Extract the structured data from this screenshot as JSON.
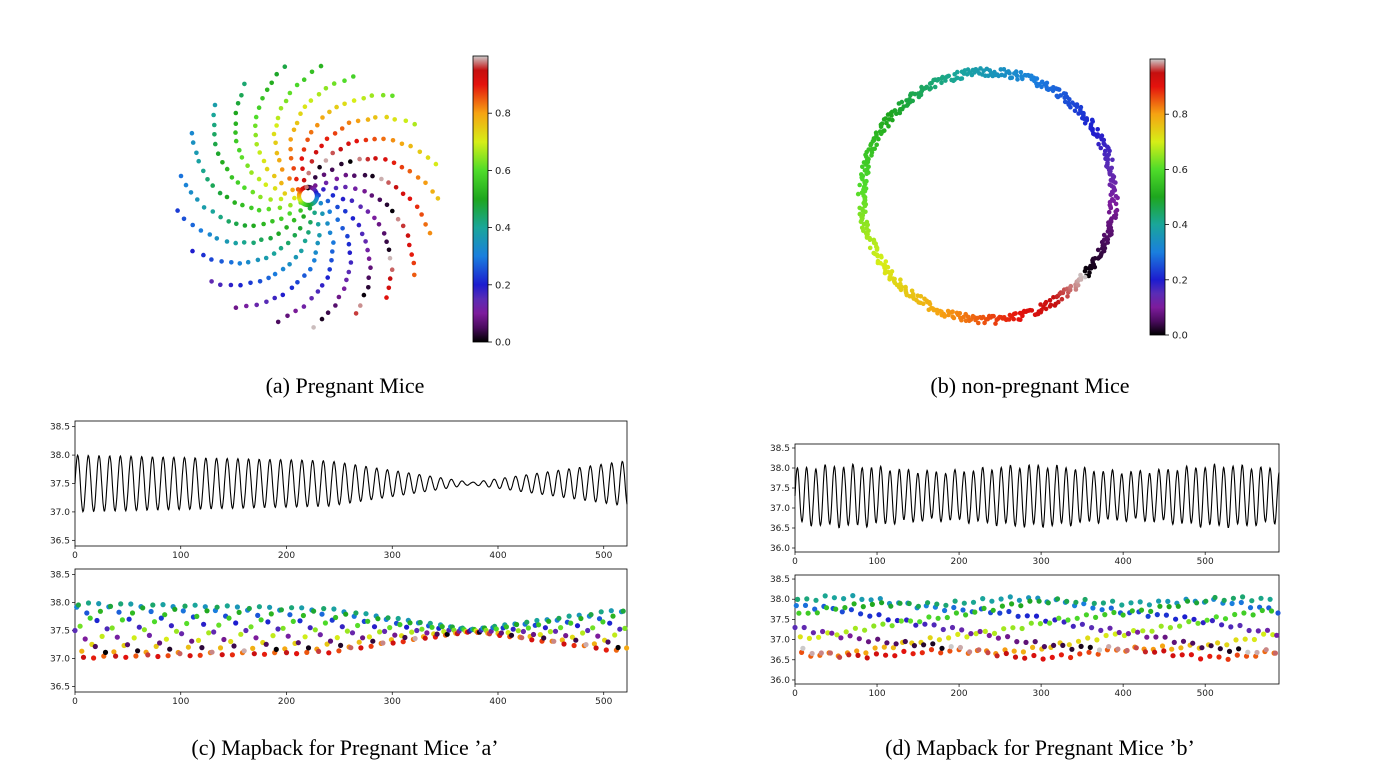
{
  "captions": {
    "a": "(a) Pregnant Mice",
    "b": "(b) non-pregnant Mice",
    "c": "(c) Mapback for Pregnant Mice ’a’",
    "d": "(d) Mapback for Pregnant Mice ’b’"
  },
  "chart_data": [
    {
      "id": "a",
      "type": "scatter",
      "title": "",
      "xlabel": "",
      "ylabel": "",
      "description_kind": "spiral embedding colored by phase",
      "point_count": 330,
      "colorbar": {
        "range": [
          0.0,
          1.0
        ],
        "ticks": [
          "0.0",
          "0.2",
          "0.4",
          "0.6",
          "0.8"
        ],
        "colormap": "nipy_spectral"
      },
      "axes_visible": false
    },
    {
      "id": "b",
      "type": "scatter",
      "title": "",
      "xlabel": "",
      "ylabel": "",
      "description_kind": "ring embedding colored by phase",
      "point_count": 520,
      "colorbar": {
        "range": [
          0.0,
          1.0
        ],
        "ticks": [
          "0.0",
          "0.2",
          "0.4",
          "0.6",
          "0.8"
        ],
        "colormap": "nipy_spectral"
      },
      "axes_visible": false
    },
    {
      "id": "c_top",
      "type": "line",
      "xlim": [
        0,
        522
      ],
      "ylim": [
        36.4,
        38.6
      ],
      "xticks": [
        "0",
        "100",
        "200",
        "300",
        "400",
        "500"
      ],
      "yticks": [
        "36.5",
        "37.0",
        "37.5",
        "38.0",
        "38.5"
      ],
      "series": [
        {
          "color": "#000000",
          "period": 10.1,
          "center": 37.5,
          "amplitude_start": 0.5,
          "amplitude_min": 0.02,
          "amplitude_min_at": 375,
          "amplitude_end": 0.4
        }
      ]
    },
    {
      "id": "c_bottom",
      "type": "scatter",
      "xlim": [
        0,
        522
      ],
      "ylim": [
        36.4,
        38.6
      ],
      "xticks": [
        "0",
        "100",
        "200",
        "300",
        "400",
        "500"
      ],
      "yticks": [
        "36.5",
        "37.0",
        "37.5",
        "38.0",
        "38.5"
      ],
      "colormap": "nipy_spectral"
    },
    {
      "id": "d_top",
      "type": "line",
      "xlim": [
        0,
        590
      ],
      "ylim": [
        35.9,
        38.6
      ],
      "xticks": [
        "0",
        "100",
        "200",
        "300",
        "400",
        "500"
      ],
      "yticks": [
        "36.0",
        "36.5",
        "37.0",
        "37.5",
        "38.0",
        "38.5"
      ],
      "series": [
        {
          "color": "#000000",
          "period": 11.3,
          "center": 37.3,
          "amplitude": 0.75
        }
      ]
    },
    {
      "id": "d_bottom",
      "type": "scatter",
      "xlim": [
        0,
        590
      ],
      "ylim": [
        35.9,
        38.6
      ],
      "xticks": [
        "0",
        "100",
        "200",
        "300",
        "400",
        "500"
      ],
      "yticks": [
        "36.0",
        "36.5",
        "37.0",
        "37.5",
        "38.0",
        "38.5"
      ],
      "colormap": "nipy_spectral"
    }
  ]
}
